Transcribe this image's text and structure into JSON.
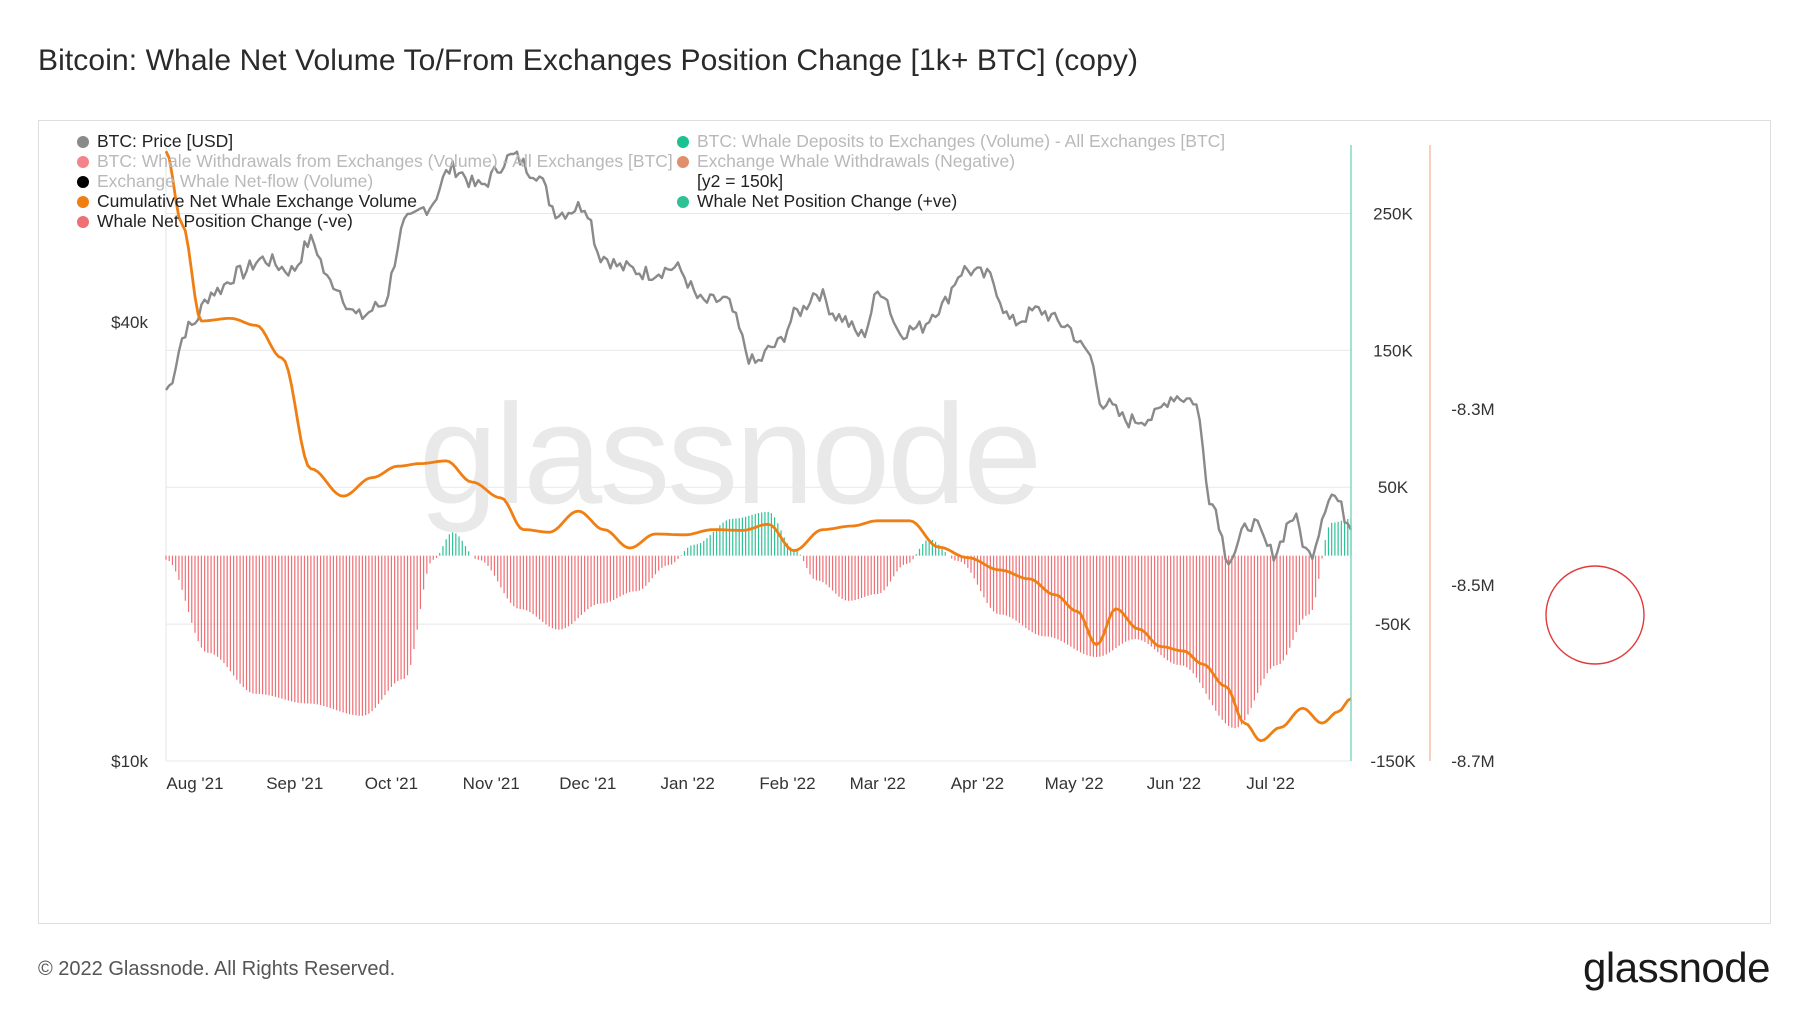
{
  "title": "Bitcoin: Whale Net Volume To/From Exchanges Position Change [1k+ BTC] (copy)",
  "footer": "© 2022 Glassnode. All Rights Reserved.",
  "brand": "glassnode",
  "watermark": "glassnode",
  "colors": {
    "price": "#8a8a8a",
    "cumulative": "#f07f13",
    "positive": "#2fc196",
    "negative": "#ee6f74",
    "grid": "#e8e8e8",
    "axis_right_line_1": "#6fd3b4",
    "axis_right_line_2": "#f1b59b"
  },
  "legend": [
    {
      "label": "BTC: Price [USD]",
      "color": "#8a8a8a",
      "faded": false
    },
    {
      "label": "BTC: Whale Deposits to Exchanges (Volume) - All Exchanges [BTC]",
      "color": "#19c28f",
      "faded": true
    },
    {
      "label": "BTC: Whale Withdrawals from Exchanges (Volume) - All Exchanges [BTC]",
      "color": "#f6838a",
      "faded": true
    },
    {
      "label": "Exchange Whale Withdrawals (Negative)",
      "color": "#e08f6c",
      "faded": true
    },
    {
      "label": "Exchange Whale Net-flow (Volume)",
      "color": "#000000",
      "faded": true
    },
    {
      "label": "[y2 = 150k]",
      "color": "",
      "faded": false
    },
    {
      "label": "Cumulative Net Whale Exchange Volume",
      "color": "#f07f13",
      "faded": false
    },
    {
      "label": "Whale Net Position Change (+ve)",
      "color": "#2fc196",
      "faded": false
    },
    {
      "label": "Whale Net Position Change (-ve)",
      "color": "#ee6f74",
      "faded": false
    }
  ],
  "chart_data": {
    "type": "line",
    "x_range": [
      "2021-07-23",
      "2022-07-26"
    ],
    "x_ticks": [
      "Aug '21",
      "Sep '21",
      "Oct '21",
      "Nov '21",
      "Dec '21",
      "Jan '22",
      "Feb '22",
      "Mar '22",
      "Apr '22",
      "May '22",
      "Jun '22",
      "Jul '22"
    ],
    "left_axis": {
      "scale": "log",
      "range": [
        10000,
        70000
      ],
      "tick_labels": [
        "$40k",
        "$10k"
      ],
      "tick_values": [
        40000,
        10000
      ]
    },
    "right_axis_1": {
      "range": [
        -150000,
        300000
      ],
      "tick_labels": [
        "250K",
        "150K",
        "50K",
        "-50K",
        "-150K"
      ],
      "tick_values": [
        250000,
        150000,
        50000,
        -50000,
        -150000
      ]
    },
    "right_axis_2": {
      "range": [
        -8700000,
        -8000000
      ],
      "tick_labels": [
        "-8.3M",
        "-8.5M",
        "-8.7M"
      ],
      "tick_values": [
        -8300000,
        -8500000,
        -8700000
      ]
    },
    "series": [
      {
        "name": "BTC: Price [USD]",
        "axis": "left",
        "x": [
          "2021-07-23",
          "2021-07-30",
          "2021-08-07",
          "2021-08-15",
          "2021-08-22",
          "2021-08-31",
          "2021-09-06",
          "2021-09-12",
          "2021-09-21",
          "2021-09-28",
          "2021-10-06",
          "2021-10-12",
          "2021-10-20",
          "2021-10-28",
          "2021-11-08",
          "2021-11-14",
          "2021-11-22",
          "2021-11-30",
          "2021-12-05",
          "2021-12-12",
          "2021-12-20",
          "2021-12-28",
          "2022-01-06",
          "2022-01-12",
          "2022-01-22",
          "2022-01-28",
          "2022-02-05",
          "2022-02-10",
          "2022-02-17",
          "2022-02-24",
          "2022-03-02",
          "2022-03-08",
          "2022-03-14",
          "2022-03-20",
          "2022-03-28",
          "2022-04-04",
          "2022-04-12",
          "2022-04-20",
          "2022-04-28",
          "2022-05-05",
          "2022-05-10",
          "2022-05-18",
          "2022-05-25",
          "2022-06-01",
          "2022-06-07",
          "2022-06-13",
          "2022-06-18",
          "2022-06-25",
          "2022-07-02",
          "2022-07-08",
          "2022-07-13",
          "2022-07-20",
          "2022-07-26"
        ],
        "y": [
          32300,
          39300,
          44100,
          46700,
          48800,
          47100,
          51700,
          45400,
          40700,
          42200,
          55000,
          57500,
          65000,
          61500,
          67500,
          64400,
          56500,
          57800,
          49300,
          47500,
          46700,
          47500,
          42600,
          42900,
          35100,
          37100,
          41500,
          44000,
          40700,
          38400,
          44300,
          38800,
          39300,
          41800,
          47200,
          46300,
          40000,
          41500,
          39700,
          36500,
          31000,
          29300,
          29600,
          31700,
          31300,
          22500,
          19000,
          21200,
          19300,
          21600,
          19200,
          23200,
          21200
        ]
      },
      {
        "name": "Cumulative Net Whale Exchange Volume",
        "axis": "right_2",
        "x": [
          "2021-07-23",
          "2021-07-28",
          "2021-08-03",
          "2021-08-12",
          "2021-08-20",
          "2021-08-28",
          "2021-09-06",
          "2021-09-16",
          "2021-09-25",
          "2021-10-03",
          "2021-10-10",
          "2021-10-18",
          "2021-10-26",
          "2021-11-04",
          "2021-11-11",
          "2021-11-19",
          "2021-11-28",
          "2021-12-06",
          "2021-12-14",
          "2021-12-22",
          "2021-12-31",
          "2022-01-09",
          "2022-01-18",
          "2022-01-26",
          "2022-02-03",
          "2022-02-12",
          "2022-02-21",
          "2022-03-01",
          "2022-03-11",
          "2022-03-20",
          "2022-03-29",
          "2022-04-08",
          "2022-04-17",
          "2022-04-25",
          "2022-05-02",
          "2022-05-08",
          "2022-05-14",
          "2022-05-21",
          "2022-05-28",
          "2022-06-04",
          "2022-06-10",
          "2022-06-17",
          "2022-06-23",
          "2022-06-28",
          "2022-07-04",
          "2022-07-11",
          "2022-07-17",
          "2022-07-22",
          "2022-07-26"
        ],
        "y": [
          -8007000,
          -8090000,
          -8200000,
          -8197000,
          -8205000,
          -8242000,
          -8368000,
          -8399000,
          -8378000,
          -8365000,
          -8362000,
          -8359000,
          -8383000,
          -8401000,
          -8437000,
          -8440000,
          -8416000,
          -8437000,
          -8458000,
          -8442000,
          -8443000,
          -8437000,
          -8438000,
          -8431000,
          -8461000,
          -8437000,
          -8433000,
          -8427000,
          -8427000,
          -8457000,
          -8469000,
          -8483000,
          -8493000,
          -8511000,
          -8530000,
          -8568000,
          -8527000,
          -8550000,
          -8570000,
          -8575000,
          -8590000,
          -8615000,
          -8657000,
          -8677000,
          -8662000,
          -8640000,
          -8657000,
          -8644000,
          -8629000
        ]
      },
      {
        "name": "Whale Net Position Change",
        "axis": "right_1",
        "x": [
          "2021-07-23",
          "2021-08-05",
          "2021-08-20",
          "2021-09-05",
          "2021-09-22",
          "2021-10-05",
          "2021-10-14",
          "2021-10-20",
          "2021-10-28",
          "2021-11-10",
          "2021-11-22",
          "2021-12-05",
          "2021-12-16",
          "2021-12-26",
          "2022-01-03",
          "2022-01-15",
          "2022-01-26",
          "2022-02-03",
          "2022-02-10",
          "2022-02-20",
          "2022-03-01",
          "2022-03-10",
          "2022-03-17",
          "2022-03-26",
          "2022-04-08",
          "2022-04-22",
          "2022-05-08",
          "2022-05-20",
          "2022-06-03",
          "2022-06-20",
          "2022-07-03",
          "2022-07-13",
          "2022-07-20",
          "2022-07-26"
        ],
        "y": [
          -3000,
          -71000,
          -101000,
          -108000,
          -117000,
          -90000,
          -3000,
          17000,
          -3000,
          -39000,
          -54000,
          -35000,
          -26000,
          -7000,
          8000,
          27000,
          32000,
          5000,
          -18000,
          -33000,
          -28000,
          -6000,
          12000,
          -4000,
          -43000,
          -59000,
          -74000,
          -61000,
          -80000,
          -126000,
          -80000,
          -43000,
          24000,
          27000
        ]
      }
    ]
  }
}
